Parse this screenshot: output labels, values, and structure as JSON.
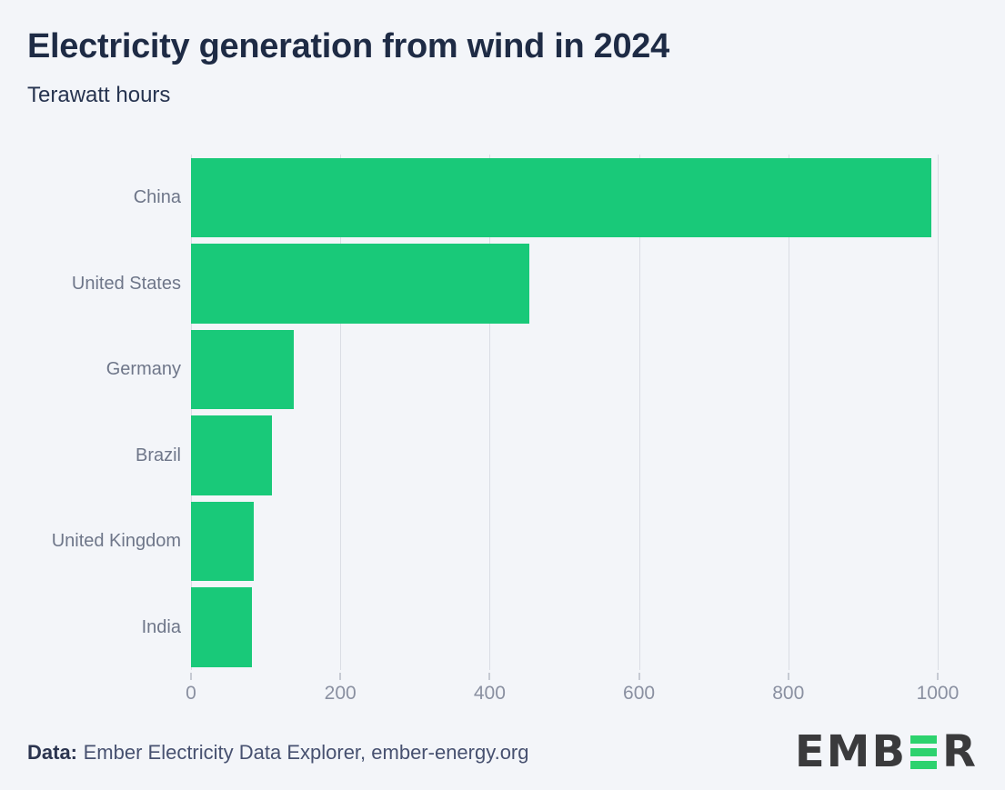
{
  "chart_data": {
    "type": "bar",
    "orientation": "horizontal",
    "title": "Electricity generation from wind in 2024",
    "subtitle": "Terawatt hours",
    "unit": "TWh",
    "categories": [
      "China",
      "United States",
      "Germany",
      "Brazil",
      "United Kingdom",
      "India"
    ],
    "values": [
      992,
      453,
      138,
      109,
      84,
      82
    ],
    "xticks": [
      0,
      200,
      400,
      600,
      800,
      1000
    ],
    "xlim": [
      0,
      1050
    ],
    "grid": "vertical-gridlines-only",
    "legend": "none",
    "bar_color": "#19c979"
  },
  "footer": {
    "source_label": "Data:",
    "source_text": "Ember Electricity Data Explorer, ember-energy.org",
    "logo": {
      "brand": "EMBER",
      "left": "EMB",
      "right": "R",
      "green_e_icon": "three-horizontal-green-bars"
    }
  },
  "colors": {
    "background": "#f3f5f9",
    "bar": "#19c979",
    "title": "#1e2b45",
    "subtitle": "#273450",
    "category_label": "#6e7689",
    "tick_label": "#8a90a1",
    "tick_mark": "#c6cad3",
    "gridline": "#dadde4",
    "footer_text": "#475170",
    "footer_label": "#2b344f",
    "logo_dark": "#3a3a3c",
    "logo_green": "#2dd26e"
  }
}
